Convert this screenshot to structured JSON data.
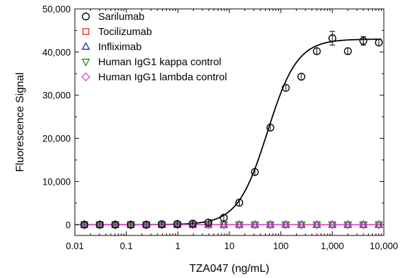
{
  "chart_data": {
    "type": "scatter",
    "xlabel": "TZA047 (ng/mL)",
    "ylabel": "Fluorescence Signal",
    "xscale": "log",
    "xlim": [
      0.01,
      10000
    ],
    "ylim": [
      -2500,
      50000
    ],
    "xticks": [
      {
        "value": 0.01,
        "label": "0.01"
      },
      {
        "value": 0.1,
        "label": "0.1"
      },
      {
        "value": 1,
        "label": "1"
      },
      {
        "value": 10,
        "label": "10"
      },
      {
        "value": 100,
        "label": "100"
      },
      {
        "value": 1000,
        "label": "1,000"
      },
      {
        "value": 10000,
        "label": "10,000"
      }
    ],
    "yticks": [
      {
        "value": 0,
        "label": "0"
      },
      {
        "value": 10000,
        "label": "10,000"
      },
      {
        "value": 20000,
        "label": "20,000"
      },
      {
        "value": 30000,
        "label": "30,000"
      },
      {
        "value": 40000,
        "label": "40,000"
      },
      {
        "value": 50000,
        "label": "50,000"
      }
    ],
    "legend_position": "top-left",
    "grid": false,
    "series": [
      {
        "name": "Sarilumab",
        "marker": "circle",
        "color": "#000000",
        "x": [
          0.0153,
          0.0305,
          0.061,
          0.122,
          0.244,
          0.488,
          0.977,
          1.95,
          3.91,
          7.81,
          15.6,
          31.3,
          62.5,
          125,
          250,
          500,
          1000,
          2000,
          4000,
          8000
        ],
        "y": [
          0,
          0,
          0,
          0,
          0,
          100,
          150,
          250,
          500,
          1600,
          5100,
          12200,
          22500,
          31700,
          34300,
          40200,
          43200,
          40200,
          42600,
          42200
        ],
        "yerr": [
          0,
          0,
          0,
          0,
          0,
          0,
          0,
          0,
          0,
          0,
          0,
          0,
          0,
          0,
          0,
          0,
          1600,
          0,
          1000,
          0
        ]
      },
      {
        "name": "Tocilizumab",
        "marker": "square",
        "color": "#e8302e",
        "x": [
          0.0153,
          0.0305,
          0.061,
          0.122,
          0.244,
          0.488,
          0.977,
          1.95,
          3.91,
          7.81,
          15.6,
          31.3,
          62.5,
          125,
          250,
          500,
          1000,
          2000,
          4000,
          8000
        ],
        "y": [
          0,
          0,
          0,
          0,
          0,
          0,
          0,
          0,
          0,
          0,
          0,
          0,
          0,
          0,
          0,
          0,
          0,
          0,
          0,
          0
        ]
      },
      {
        "name": "Infliximab",
        "marker": "triangle-up",
        "color": "#2638a8",
        "x": [
          0.0153,
          0.0305,
          0.061,
          0.122,
          0.244,
          0.488,
          0.977,
          1.95,
          3.91,
          7.81,
          15.6,
          31.3,
          62.5,
          125,
          250,
          500,
          1000,
          2000,
          4000,
          8000
        ],
        "y": [
          0,
          0,
          0,
          0,
          0,
          0,
          0,
          0,
          0,
          0,
          0,
          0,
          0,
          0,
          0,
          0,
          0,
          0,
          0,
          0
        ]
      },
      {
        "name": "Human IgG1 kappa control",
        "marker": "triangle-down",
        "color": "#2f8a2f",
        "x": [
          0.0153,
          0.0305,
          0.061,
          0.122,
          0.244,
          0.488,
          0.977,
          1.95,
          3.91,
          7.81,
          15.6,
          31.3,
          62.5,
          125,
          250,
          500,
          1000,
          2000,
          4000,
          8000
        ],
        "y": [
          0,
          0,
          0,
          0,
          0,
          0,
          0,
          0,
          0,
          0,
          0,
          0,
          0,
          0,
          0,
          0,
          0,
          0,
          0,
          0
        ]
      },
      {
        "name": "Human IgG1 lambda control",
        "marker": "diamond",
        "color": "#e44ad6",
        "x": [
          0.0153,
          0.0305,
          0.061,
          0.122,
          0.244,
          0.488,
          0.977,
          1.95,
          3.91,
          7.81,
          15.6,
          31.3,
          62.5,
          125,
          250,
          500,
          1000,
          2000,
          4000,
          8000
        ],
        "y": [
          0,
          0,
          0,
          0,
          0,
          0,
          0,
          0,
          0,
          0,
          0,
          0,
          0,
          0,
          0,
          0,
          0,
          0,
          0,
          0
        ]
      }
    ],
    "fit_curves": [
      {
        "for": "Sarilumab",
        "model": "4PL",
        "bottom": 0,
        "top": 43000,
        "ec50": 55,
        "hill": 1.5,
        "color": "#000000"
      },
      {
        "for": "controls",
        "model": "flat",
        "value": 0,
        "color": "#e44ad6"
      }
    ]
  }
}
